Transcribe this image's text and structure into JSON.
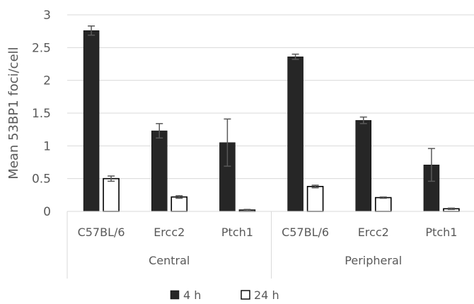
{
  "chart_data": {
    "type": "bar",
    "ylabel": "Mean 53BP1 foci/cell",
    "ylim": [
      0,
      3
    ],
    "yticks": [
      "0",
      "0.5",
      "1",
      "1.5",
      "2",
      "2.5",
      "3"
    ],
    "yticks_values": [
      0,
      0.5,
      1,
      1.5,
      2,
      2.5,
      3
    ],
    "grid": true,
    "legend_position": "bottom",
    "groups": [
      {
        "label": "Central",
        "categories": [
          "C57BL/6",
          "Ercc2",
          "Ptch1"
        ]
      },
      {
        "label": "Peripheral",
        "categories": [
          "C57BL/6",
          "Ercc2",
          "Ptch1"
        ]
      }
    ],
    "series": [
      {
        "name": "4 h",
        "color": "#262626",
        "values": [
          2.76,
          1.23,
          1.05,
          2.36,
          1.39,
          0.71
        ],
        "error": [
          0.07,
          0.11,
          0.36,
          0.04,
          0.05,
          0.25
        ]
      },
      {
        "name": "24 h",
        "color": "#ffffff",
        "values": [
          0.5,
          0.22,
          0.02,
          0.38,
          0.21,
          0.04
        ],
        "error": [
          0.04,
          0.02,
          0.01,
          0.02,
          0.01,
          0.01
        ]
      }
    ]
  }
}
